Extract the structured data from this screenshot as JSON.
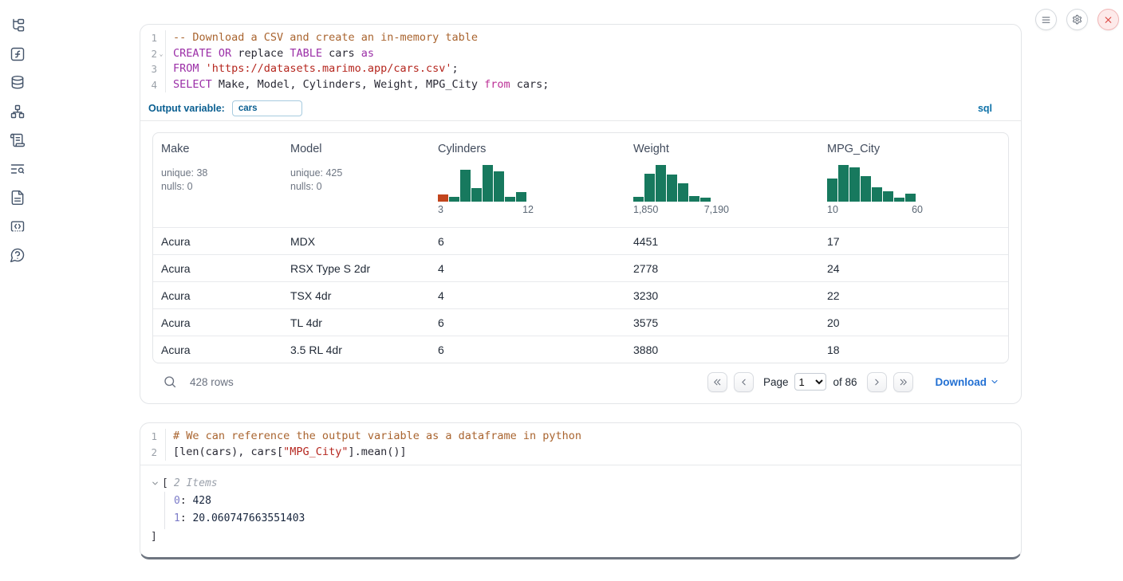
{
  "colors": {
    "hist_green": "#17795e",
    "hist_orange": "#c2451d",
    "accent_blue": "#0a5f91",
    "link_blue": "#2270d3",
    "close_red": "#dc4a45"
  },
  "sidebar": {
    "items": [
      {
        "icon": "file-tree-icon"
      },
      {
        "icon": "function-icon"
      },
      {
        "icon": "database-icon"
      },
      {
        "icon": "dependency-graph-icon"
      },
      {
        "icon": "scroll-icon"
      },
      {
        "icon": "search-list-icon"
      },
      {
        "icon": "document-icon"
      },
      {
        "icon": "snippets-icon"
      },
      {
        "icon": "help-icon"
      }
    ]
  },
  "window_controls": {
    "buttons": [
      {
        "icon": "menu-icon"
      },
      {
        "icon": "gear-icon"
      },
      {
        "icon": "close-icon"
      }
    ]
  },
  "cell1": {
    "lines": [
      {
        "n": "1",
        "tokens": [
          {
            "c": "com",
            "t": "-- Download a CSV and create an in-memory table"
          }
        ]
      },
      {
        "n": "2",
        "fold": true,
        "tokens": [
          {
            "c": "kw",
            "t": "CREATE"
          },
          {
            "c": "pl",
            "t": " "
          },
          {
            "c": "kw",
            "t": "OR"
          },
          {
            "c": "pl",
            "t": " replace "
          },
          {
            "c": "kw",
            "t": "TABLE"
          },
          {
            "c": "pl",
            "t": " cars "
          },
          {
            "c": "kw",
            "t": "as"
          }
        ]
      },
      {
        "n": "3",
        "tokens": [
          {
            "c": "kw",
            "t": "FROM"
          },
          {
            "c": "pl",
            "t": " "
          },
          {
            "c": "str",
            "t": "'https://datasets.marimo.app/cars.csv'"
          },
          {
            "c": "pl",
            "t": ";"
          }
        ]
      },
      {
        "n": "4",
        "tokens": [
          {
            "c": "kw",
            "t": "SELECT"
          },
          {
            "c": "pl",
            "t": " Make, Model, Cylinders, Weight, MPG_City "
          },
          {
            "c": "kw2",
            "t": "from"
          },
          {
            "c": "pl",
            "t": " cars;"
          }
        ]
      }
    ],
    "outvar": {
      "label": "Output variable:",
      "value": "cars",
      "badge": "sql"
    },
    "table": {
      "columns": [
        {
          "name": "Make",
          "stats": [
            "unique: 38",
            "nulls: 0"
          ]
        },
        {
          "name": "Model",
          "stats": [
            "unique: 425",
            "nulls: 0"
          ]
        },
        {
          "name": "Cylinders",
          "hist": {
            "values": [
              0.2,
              0.12,
              0.88,
              0.38,
              1,
              0.82,
              0.13,
              0.27
            ],
            "highlight_index": 0,
            "labels": [
              "3",
              "12"
            ]
          }
        },
        {
          "name": "Weight",
          "hist": {
            "values": [
              0.13,
              0.75,
              1,
              0.73,
              0.5,
              0.16,
              0.11
            ],
            "labels": [
              "1,850",
              "7,190"
            ]
          }
        },
        {
          "name": "MPG_City",
          "hist": {
            "values": [
              0.62,
              1,
              0.93,
              0.7,
              0.4,
              0.28,
              0.11,
              0.22
            ],
            "labels": [
              "10",
              "60"
            ]
          }
        }
      ],
      "rows": [
        [
          "Acura",
          "MDX",
          "6",
          "4451",
          "17"
        ],
        [
          "Acura",
          "RSX Type S 2dr",
          "4",
          "2778",
          "24"
        ],
        [
          "Acura",
          "TSX 4dr",
          "4",
          "3230",
          "22"
        ],
        [
          "Acura",
          "TL 4dr",
          "6",
          "3575",
          "20"
        ],
        [
          "Acura",
          "3.5 RL 4dr",
          "6",
          "3880",
          "18"
        ]
      ],
      "footer": {
        "rows_count": "428 rows",
        "page_label": "Page",
        "page_value": "1",
        "of_label": "of 86",
        "download_label": "Download"
      }
    }
  },
  "cell2": {
    "lines": [
      {
        "n": "1",
        "tokens": [
          {
            "c": "com",
            "t": "# We can reference the output variable as a dataframe in python"
          }
        ]
      },
      {
        "n": "2",
        "tokens": [
          {
            "c": "pl",
            "t": "[len(cars), cars["
          },
          {
            "c": "str",
            "t": "\"MPG_City\""
          },
          {
            "c": "pl",
            "t": "].mean()]"
          }
        ]
      }
    ],
    "output": {
      "bracket_open": "[",
      "count_label": "2 Items",
      "entries": [
        {
          "key": "0",
          "value": "428"
        },
        {
          "key": "1",
          "value": "20.060747663551403"
        }
      ],
      "bracket_close": "]"
    }
  }
}
